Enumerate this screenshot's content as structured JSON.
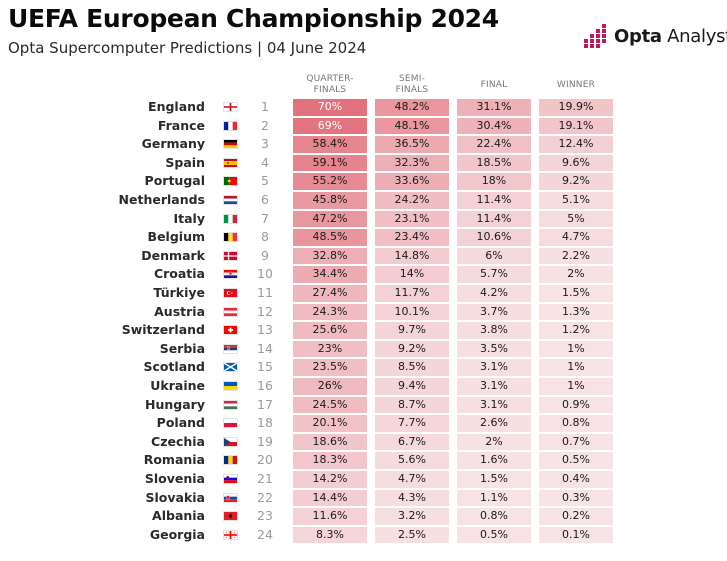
{
  "header": {
    "title": "UEFA European Championship 2024",
    "subtitle": "Opta Supercomputer Predictions | 04 June 2024"
  },
  "brand": {
    "name_bold": "Opta",
    "name_rest": " Analyst"
  },
  "colors": {
    "accent": "#c2185b",
    "cell_base": "#f7e4e6",
    "cell_strong": "#e2727d",
    "text": "#1a1a1a"
  },
  "columns": [
    {
      "key": "qf",
      "label_line1": "QUARTER-",
      "label_line2": "FINALS"
    },
    {
      "key": "sf",
      "label_line1": "SEMI-",
      "label_line2": "FINALS"
    },
    {
      "key": "final",
      "label_line1": "FINAL",
      "label_line2": ""
    },
    {
      "key": "winner",
      "label_line1": "WINNER",
      "label_line2": ""
    }
  ],
  "chart_data": {
    "type": "table",
    "title": "UEFA European Championship 2024",
    "subtitle": "Opta Supercomputer Predictions | 04 June 2024",
    "columns": [
      "QUARTER-FINALS",
      "SEMI-FINALS",
      "FINAL",
      "WINNER"
    ],
    "rows": [
      {
        "team": "England",
        "flag": "england-flag",
        "rank": "1",
        "qf": "70%",
        "sf": "48.2%",
        "final": "31.1%",
        "winner": "19.9%",
        "v": [
          70,
          48.2,
          31.1,
          19.9
        ]
      },
      {
        "team": "France",
        "flag": "france-flag",
        "rank": "2",
        "qf": "69%",
        "sf": "48.1%",
        "final": "30.4%",
        "winner": "19.1%",
        "v": [
          69,
          48.1,
          30.4,
          19.1
        ]
      },
      {
        "team": "Germany",
        "flag": "germany-flag",
        "rank": "3",
        "qf": "58.4%",
        "sf": "36.5%",
        "final": "22.4%",
        "winner": "12.4%",
        "v": [
          58.4,
          36.5,
          22.4,
          12.4
        ]
      },
      {
        "team": "Spain",
        "flag": "spain-flag",
        "rank": "4",
        "qf": "59.1%",
        "sf": "32.3%",
        "final": "18.5%",
        "winner": "9.6%",
        "v": [
          59.1,
          32.3,
          18.5,
          9.6
        ]
      },
      {
        "team": "Portugal",
        "flag": "portugal-flag",
        "rank": "5",
        "qf": "55.2%",
        "sf": "33.6%",
        "final": "18%",
        "winner": "9.2%",
        "v": [
          55.2,
          33.6,
          18,
          9.2
        ]
      },
      {
        "team": "Netherlands",
        "flag": "netherlands-flag",
        "rank": "6",
        "qf": "45.8%",
        "sf": "24.2%",
        "final": "11.4%",
        "winner": "5.1%",
        "v": [
          45.8,
          24.2,
          11.4,
          5.1
        ]
      },
      {
        "team": "Italy",
        "flag": "italy-flag",
        "rank": "7",
        "qf": "47.2%",
        "sf": "23.1%",
        "final": "11.4%",
        "winner": "5%",
        "v": [
          47.2,
          23.1,
          11.4,
          5
        ]
      },
      {
        "team": "Belgium",
        "flag": "belgium-flag",
        "rank": "8",
        "qf": "48.5%",
        "sf": "23.4%",
        "final": "10.6%",
        "winner": "4.7%",
        "v": [
          48.5,
          23.4,
          10.6,
          4.7
        ]
      },
      {
        "team": "Denmark",
        "flag": "denmark-flag",
        "rank": "9",
        "qf": "32.8%",
        "sf": "14.8%",
        "final": "6%",
        "winner": "2.2%",
        "v": [
          32.8,
          14.8,
          6,
          2.2
        ]
      },
      {
        "team": "Croatia",
        "flag": "croatia-flag",
        "rank": "10",
        "qf": "34.4%",
        "sf": "14%",
        "final": "5.7%",
        "winner": "2%",
        "v": [
          34.4,
          14,
          5.7,
          2
        ]
      },
      {
        "team": "Türkiye",
        "flag": "turkiye-flag",
        "rank": "11",
        "qf": "27.4%",
        "sf": "11.7%",
        "final": "4.2%",
        "winner": "1.5%",
        "v": [
          27.4,
          11.7,
          4.2,
          1.5
        ]
      },
      {
        "team": "Austria",
        "flag": "austria-flag",
        "rank": "12",
        "qf": "24.3%",
        "sf": "10.1%",
        "final": "3.7%",
        "winner": "1.3%",
        "v": [
          24.3,
          10.1,
          3.7,
          1.3
        ]
      },
      {
        "team": "Switzerland",
        "flag": "switzerland-flag",
        "rank": "13",
        "qf": "25.6%",
        "sf": "9.7%",
        "final": "3.8%",
        "winner": "1.2%",
        "v": [
          25.6,
          9.7,
          3.8,
          1.2
        ]
      },
      {
        "team": "Serbia",
        "flag": "serbia-flag",
        "rank": "14",
        "qf": "23%",
        "sf": "9.2%",
        "final": "3.5%",
        "winner": "1%",
        "v": [
          23,
          9.2,
          3.5,
          1
        ]
      },
      {
        "team": "Scotland",
        "flag": "scotland-flag",
        "rank": "15",
        "qf": "23.5%",
        "sf": "8.5%",
        "final": "3.1%",
        "winner": "1%",
        "v": [
          23.5,
          8.5,
          3.1,
          1
        ]
      },
      {
        "team": "Ukraine",
        "flag": "ukraine-flag",
        "rank": "16",
        "qf": "26%",
        "sf": "9.4%",
        "final": "3.1%",
        "winner": "1%",
        "v": [
          26,
          9.4,
          3.1,
          1
        ]
      },
      {
        "team": "Hungary",
        "flag": "hungary-flag",
        "rank": "17",
        "qf": "24.5%",
        "sf": "8.7%",
        "final": "3.1%",
        "winner": "0.9%",
        "v": [
          24.5,
          8.7,
          3.1,
          0.9
        ]
      },
      {
        "team": "Poland",
        "flag": "poland-flag",
        "rank": "18",
        "qf": "20.1%",
        "sf": "7.7%",
        "final": "2.6%",
        "winner": "0.8%",
        "v": [
          20.1,
          7.7,
          2.6,
          0.8
        ]
      },
      {
        "team": "Czechia",
        "flag": "czechia-flag",
        "rank": "19",
        "qf": "18.6%",
        "sf": "6.7%",
        "final": "2%",
        "winner": "0.7%",
        "v": [
          18.6,
          6.7,
          2,
          0.7
        ]
      },
      {
        "team": "Romania",
        "flag": "romania-flag",
        "rank": "20",
        "qf": "18.3%",
        "sf": "5.6%",
        "final": "1.6%",
        "winner": "0.5%",
        "v": [
          18.3,
          5.6,
          1.6,
          0.5
        ]
      },
      {
        "team": "Slovenia",
        "flag": "slovenia-flag",
        "rank": "21",
        "qf": "14.2%",
        "sf": "4.7%",
        "final": "1.5%",
        "winner": "0.4%",
        "v": [
          14.2,
          4.7,
          1.5,
          0.4
        ]
      },
      {
        "team": "Slovakia",
        "flag": "slovakia-flag",
        "rank": "22",
        "qf": "14.4%",
        "sf": "4.3%",
        "final": "1.1%",
        "winner": "0.3%",
        "v": [
          14.4,
          4.3,
          1.1,
          0.3
        ]
      },
      {
        "team": "Albania",
        "flag": "albania-flag",
        "rank": "23",
        "qf": "11.6%",
        "sf": "3.2%",
        "final": "0.8%",
        "winner": "0.2%",
        "v": [
          11.6,
          3.2,
          0.8,
          0.2
        ]
      },
      {
        "team": "Georgia",
        "flag": "georgia-flag",
        "rank": "24",
        "qf": "8.3%",
        "sf": "2.5%",
        "final": "0.5%",
        "winner": "0.1%",
        "v": [
          8.3,
          2.5,
          0.5,
          0.1
        ]
      }
    ]
  }
}
